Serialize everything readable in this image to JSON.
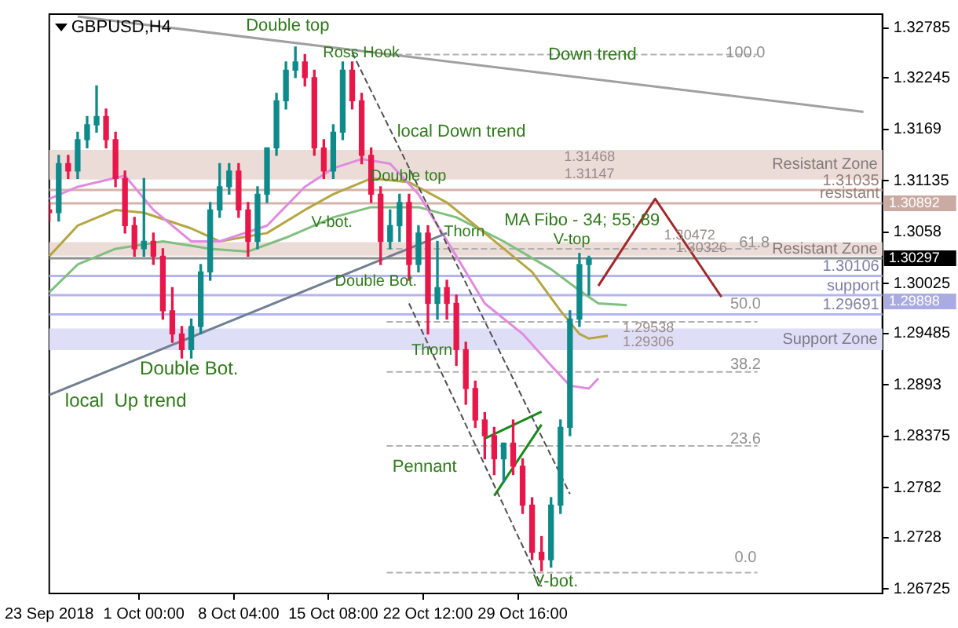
{
  "chart_data": {
    "type": "candlestick",
    "title": "GBPUSD,H4",
    "categories": [
      "23 Sep 2018",
      null,
      null,
      null,
      null,
      null,
      null,
      null,
      null,
      null,
      "1 Oct 00:00",
      null,
      null,
      null,
      null,
      null,
      null,
      null,
      null,
      null,
      "8 Oct 04:00",
      null,
      null,
      null,
      null,
      null,
      null,
      null,
      null,
      null,
      "15 Oct 08:00",
      null,
      null,
      null,
      null,
      null,
      null,
      null,
      null,
      null,
      "22 Oct 12:00",
      null,
      null,
      null,
      null,
      null,
      null,
      null,
      null,
      null,
      "29 Oct 16:00",
      null,
      null,
      null,
      null,
      null,
      null,
      null,
      null,
      null,
      null,
      null,
      null,
      null,
      null,
      null,
      null,
      null,
      null,
      null,
      null,
      null,
      null,
      null,
      null,
      null,
      null,
      null,
      null,
      null,
      null,
      null,
      null,
      null,
      null,
      null,
      null,
      null,
      null
    ],
    "ohlc": [
      [
        1.3082,
        1.309,
        1.307,
        1.3079
      ],
      [
        1.3079,
        1.3141,
        1.307,
        1.3132
      ],
      [
        1.3132,
        1.3141,
        1.3116,
        1.3124
      ],
      [
        1.3124,
        1.3166,
        1.3116,
        1.3158
      ],
      [
        1.3158,
        1.3183,
        1.3149,
        1.3174
      ],
      [
        1.3174,
        1.3216,
        1.3166,
        1.3183
      ],
      [
        1.3183,
        1.3191,
        1.3149,
        1.3158
      ],
      [
        1.3158,
        1.3166,
        1.3107,
        1.3116
      ],
      [
        1.3116,
        1.3124,
        1.3057,
        1.3065
      ],
      [
        1.3065,
        1.3074,
        1.3032,
        1.304
      ],
      [
        1.304,
        1.3116,
        1.3032,
        1.3048
      ],
      [
        1.3048,
        1.3057,
        1.3023,
        1.3032
      ],
      [
        1.3032,
        1.304,
        1.2964,
        1.2973
      ],
      [
        1.2973,
        1.2998,
        1.2939,
        1.2948
      ],
      [
        1.2948,
        1.2956,
        1.2922,
        1.2931
      ],
      [
        1.2931,
        1.2964,
        1.2922,
        1.2956
      ],
      [
        1.2956,
        1.3023,
        1.2948,
        1.3015
      ],
      [
        1.3015,
        1.309,
        1.3006,
        1.3082
      ],
      [
        1.3082,
        1.3132,
        1.3074,
        1.3107
      ],
      [
        1.3107,
        1.3132,
        1.3099,
        1.3124
      ],
      [
        1.3124,
        1.3132,
        1.3074,
        1.3082
      ],
      [
        1.3082,
        1.309,
        1.3032,
        1.3048
      ],
      [
        1.3048,
        1.3107,
        1.304,
        1.3099
      ],
      [
        1.3099,
        1.3149,
        1.309,
        1.3149
      ],
      [
        1.3149,
        1.3208,
        1.3141,
        1.32
      ],
      [
        1.32,
        1.3242,
        1.3191,
        1.3233
      ],
      [
        1.3233,
        1.3258,
        1.3225,
        1.3242
      ],
      [
        1.3242,
        1.325,
        1.3216,
        1.3225
      ],
      [
        1.3225,
        1.3233,
        1.3141,
        1.3149
      ],
      [
        1.3149,
        1.3158,
        1.3116,
        1.3124
      ],
      [
        1.3124,
        1.3174,
        1.3116,
        1.3166
      ],
      [
        1.3166,
        1.3242,
        1.3158,
        1.3233
      ],
      [
        1.3233,
        1.3242,
        1.3191,
        1.32
      ],
      [
        1.32,
        1.3208,
        1.3132,
        1.3141
      ],
      [
        1.3141,
        1.3149,
        1.309,
        1.3099
      ],
      [
        1.3099,
        1.3107,
        1.3023,
        1.3048
      ],
      [
        1.3048,
        1.3082,
        1.304,
        1.3065
      ],
      [
        1.3065,
        1.3099,
        1.3048,
        1.309
      ],
      [
        1.309,
        1.3099,
        1.3006,
        1.3023
      ],
      [
        1.3023,
        1.3065,
        1.3015,
        1.3057
      ],
      [
        1.3057,
        1.3065,
        1.2948,
        1.2981
      ],
      [
        1.2981,
        1.3048,
        1.2964,
        1.2998
      ],
      [
        1.2998,
        1.3006,
        1.2964,
        1.2981
      ],
      [
        1.2981,
        1.299,
        1.2914,
        1.2931
      ],
      [
        1.2931,
        1.2939,
        1.2872,
        1.2889
      ],
      [
        1.2889,
        1.2897,
        1.2847,
        1.2855
      ],
      [
        1.2855,
        1.2863,
        1.2813,
        1.2838
      ],
      [
        1.2838,
        1.2847,
        1.2796,
        1.2813
      ],
      [
        1.2813,
        1.283,
        1.2788,
        1.283
      ],
      [
        1.283,
        1.2855,
        1.2796,
        1.2805
      ],
      [
        1.2805,
        1.2813,
        1.2754,
        1.2763
      ],
      [
        1.2763,
        1.2771,
        1.2704,
        1.2712
      ],
      [
        1.2712,
        1.2729,
        1.2692,
        1.2704
      ],
      [
        1.2704,
        1.2771,
        1.2696,
        1.2763
      ],
      [
        1.2763,
        1.2855,
        1.2754,
        1.2847
      ],
      [
        1.2847,
        1.2973,
        1.2838,
        1.2964
      ],
      [
        1.2964,
        1.3035,
        1.2956,
        1.3023
      ],
      [
        1.3023,
        1.3032,
        1.299,
        1.303
      ],
      null,
      null,
      null,
      null,
      null,
      null,
      null,
      null,
      null,
      null,
      null,
      null,
      null,
      null,
      null,
      null,
      null,
      null,
      null,
      null,
      null,
      null,
      null,
      null,
      null,
      null,
      null,
      null,
      null,
      null,
      null
    ],
    "colors": [
      "#e8174a",
      "#0f8a8a",
      "#e8174a",
      "#0f8a8a",
      "#0f8a8a",
      "#0f8a8a",
      "#e8174a",
      "#e8174a",
      "#e8174a",
      "#e8174a",
      "#0f8a8a",
      "#e8174a",
      "#e8174a",
      "#e8174a",
      "#e8174a",
      "#0f8a8a",
      "#0f8a8a",
      "#0f8a8a",
      "#0f8a8a",
      "#0f8a8a",
      "#e8174a",
      "#e8174a",
      "#0f8a8a",
      "#0f8a8a",
      "#0f8a8a",
      "#0f8a8a",
      "#0f8a8a",
      "#e8174a",
      "#e8174a",
      "#e8174a",
      "#0f8a8a",
      "#0f8a8a",
      "#e8174a",
      "#e8174a",
      "#e8174a",
      "#e8174a",
      "#0f8a8a",
      "#0f8a8a",
      "#e8174a",
      "#0f8a8a",
      "#e8174a",
      "#0f8a8a",
      "#e8174a",
      "#e8174a",
      "#e8174a",
      "#e8174a",
      "#e8174a",
      "#e8174a",
      "#0f8a8a",
      "#e8174a",
      "#e8174a",
      "#e8174a",
      "#e8174a",
      "#0f8a8a",
      "#0f8a8a",
      "#0f8a8a",
      "#0f8a8a",
      "#0f8a8a",
      null,
      null,
      null,
      null,
      null,
      null,
      null,
      null,
      null,
      null,
      null,
      null,
      null,
      null,
      null,
      null,
      null,
      null,
      null,
      null,
      null,
      null,
      null,
      null,
      null,
      null,
      null,
      null,
      null,
      null,
      null
    ],
    "series": [
      {
        "type": "line",
        "color": "#a0a0a0",
        "line_style": "solid",
        "values": [
          null,
          null,
          null,
          1.3291,
          null,
          null,
          null,
          null,
          null,
          null,
          null,
          null,
          null,
          null,
          null,
          null,
          null,
          null,
          null,
          null,
          null,
          null,
          null,
          null,
          null,
          null,
          null,
          null,
          null,
          null,
          null,
          null,
          null,
          null,
          null,
          null,
          null,
          null,
          null,
          null,
          null,
          null,
          null,
          null,
          null,
          null,
          null,
          null,
          null,
          null,
          null,
          null,
          null,
          null,
          null,
          null,
          null,
          null,
          null,
          null,
          null,
          null,
          null,
          null,
          null,
          null,
          null,
          null,
          null,
          null,
          null,
          null,
          null,
          null,
          null,
          null,
          null,
          null,
          null,
          null,
          null,
          null,
          null,
          null,
          null,
          null,
          1.3188,
          null,
          null
        ]
      },
      {
        "type": "line",
        "color": "#708090",
        "line_style": "solid",
        "values": [
          1.2882,
          null,
          null,
          null,
          null,
          null,
          null,
          null,
          null,
          null,
          null,
          null,
          null,
          null,
          null,
          null,
          null,
          null,
          null,
          null,
          null,
          null,
          null,
          null,
          null,
          null,
          null,
          null,
          null,
          null,
          null,
          null,
          null,
          null,
          null,
          null,
          null,
          null,
          null,
          null,
          null,
          null,
          1.3057,
          null,
          null,
          null,
          null,
          null,
          null,
          null,
          null,
          null,
          null,
          null,
          null,
          null,
          null,
          null,
          null,
          null,
          null,
          null,
          null,
          null,
          null,
          null,
          null,
          null,
          null,
          null,
          null,
          null,
          null,
          null,
          null,
          null,
          null,
          null,
          null,
          null,
          null,
          null,
          null,
          null,
          null,
          null,
          null,
          null,
          null
        ]
      },
      {
        "type": "line",
        "color": "#505050",
        "line_style": "dashed",
        "values": [
          null,
          null,
          null,
          null,
          null,
          null,
          null,
          null,
          null,
          null,
          null,
          null,
          null,
          null,
          null,
          null,
          null,
          null,
          null,
          null,
          null,
          null,
          null,
          null,
          null,
          null,
          null,
          null,
          null,
          null,
          null,
          null,
          1.3252,
          null,
          null,
          null,
          null,
          null,
          null,
          null,
          null,
          null,
          null,
          null,
          null,
          null,
          null,
          null,
          null,
          null,
          null,
          null,
          null,
          null,
          null,
          1.2775,
          null,
          null,
          null,
          null,
          null,
          null,
          null,
          null,
          null,
          null,
          null,
          null,
          null,
          null,
          null,
          null,
          null,
          null,
          null,
          null,
          null,
          null,
          null,
          null,
          null,
          null,
          null,
          null,
          null,
          null,
          null,
          null,
          null
        ]
      },
      {
        "type": "line",
        "color": "#505050",
        "line_style": "dashed",
        "values": [
          null,
          null,
          null,
          null,
          null,
          null,
          null,
          null,
          null,
          null,
          null,
          null,
          null,
          null,
          null,
          null,
          null,
          null,
          null,
          null,
          null,
          null,
          null,
          null,
          null,
          null,
          null,
          null,
          null,
          null,
          null,
          null,
          null,
          null,
          null,
          null,
          null,
          null,
          1.2981,
          null,
          null,
          null,
          null,
          null,
          null,
          null,
          null,
          null,
          null,
          null,
          null,
          null,
          1.2675,
          null,
          null,
          null,
          null,
          null,
          null,
          null,
          null,
          null,
          null,
          null,
          null,
          null,
          null,
          null,
          null,
          null,
          null,
          null,
          null,
          null,
          null,
          null,
          null,
          null,
          null,
          null,
          null,
          null,
          null,
          null,
          null,
          null,
          null,
          null,
          null
        ]
      },
      {
        "type": "line",
        "color": "#1a8a1a",
        "line_style": "solid",
        "values": [
          null,
          null,
          null,
          null,
          null,
          null,
          null,
          null,
          null,
          null,
          null,
          null,
          null,
          null,
          null,
          null,
          null,
          null,
          null,
          null,
          null,
          null,
          null,
          null,
          null,
          null,
          null,
          null,
          null,
          null,
          null,
          null,
          null,
          null,
          null,
          null,
          null,
          null,
          null,
          null,
          null,
          null,
          null,
          null,
          null,
          null,
          1.2835,
          null,
          null,
          null,
          null,
          null,
          1.2864,
          null,
          null,
          null,
          null,
          null,
          null,
          null,
          null,
          null,
          null,
          null,
          null,
          null,
          null,
          null,
          null,
          null,
          null,
          null,
          null,
          null,
          null,
          null,
          null,
          null,
          null,
          null,
          null,
          null,
          null,
          null,
          null,
          null,
          null,
          null,
          null
        ]
      },
      {
        "type": "line",
        "color": "#1a8a1a",
        "line_style": "solid",
        "values": [
          null,
          null,
          null,
          null,
          null,
          null,
          null,
          null,
          null,
          null,
          null,
          null,
          null,
          null,
          null,
          null,
          null,
          null,
          null,
          null,
          null,
          null,
          null,
          null,
          null,
          null,
          null,
          null,
          null,
          null,
          null,
          null,
          null,
          null,
          null,
          null,
          null,
          null,
          null,
          null,
          null,
          null,
          null,
          null,
          null,
          null,
          null,
          1.2773,
          null,
          null,
          null,
          null,
          1.285,
          null,
          null,
          null,
          null,
          null,
          null,
          null,
          null,
          null,
          null,
          null,
          null,
          null,
          null,
          null,
          null,
          null,
          null,
          null,
          null,
          null,
          null,
          null,
          null,
          null,
          null,
          null,
          null,
          null,
          null,
          null,
          null,
          null,
          null,
          null,
          null
        ]
      },
      {
        "type": "line",
        "color": "#a02828",
        "line_style": "solid",
        "values": [
          null,
          null,
          null,
          null,
          null,
          null,
          null,
          null,
          null,
          null,
          null,
          null,
          null,
          null,
          null,
          null,
          null,
          null,
          null,
          null,
          null,
          null,
          null,
          null,
          null,
          null,
          null,
          null,
          null,
          null,
          null,
          null,
          null,
          null,
          null,
          null,
          null,
          null,
          null,
          null,
          null,
          null,
          null,
          null,
          null,
          null,
          null,
          null,
          null,
          null,
          null,
          null,
          null,
          null,
          null,
          null,
          null,
          null,
          1.3,
          null,
          null,
          null,
          null,
          null,
          1.3094,
          null,
          null,
          null,
          null,
          null,
          null,
          1.2988,
          null,
          null,
          null,
          null,
          null,
          null,
          null,
          null,
          null,
          null,
          null,
          null,
          null,
          null,
          null,
          null,
          null
        ]
      },
      {
        "type": "line",
        "color": "#e08be0",
        "line_style": "solid",
        "values": [
          1.3094,
          null,
          null,
          1.3107,
          null,
          null,
          null,
          null,
          1.3119,
          null,
          null,
          1.3082,
          null,
          null,
          null,
          1.3048,
          null,
          null,
          1.3048,
          null,
          null,
          null,
          null,
          1.3065,
          null,
          null,
          null,
          1.3107,
          null,
          null,
          1.3127,
          null,
          null,
          1.3137,
          null,
          null,
          1.3132,
          null,
          null,
          1.3099,
          null,
          null,
          null,
          1.3032,
          null,
          null,
          1.2981,
          null,
          null,
          null,
          1.2948,
          null,
          null,
          1.2914,
          null,
          1.2892,
          null,
          1.2889,
          1.29,
          null,
          null,
          null,
          null,
          null,
          null,
          null,
          null,
          null,
          null,
          null,
          null,
          null,
          null,
          null,
          null,
          null,
          null,
          null,
          null,
          null,
          null,
          null,
          null,
          null,
          null,
          null,
          null,
          null,
          null
        ]
      },
      {
        "type": "line",
        "color": "#b5a642",
        "line_style": "solid",
        "values": [
          1.3032,
          null,
          null,
          1.3065,
          null,
          null,
          null,
          1.3082,
          null,
          null,
          1.3079,
          null,
          null,
          null,
          null,
          1.3062,
          null,
          null,
          1.3048,
          null,
          null,
          null,
          null,
          1.3057,
          null,
          null,
          null,
          1.3082,
          null,
          null,
          1.3099,
          null,
          null,
          null,
          1.3116,
          null,
          null,
          null,
          1.3112,
          null,
          null,
          null,
          1.309,
          null,
          null,
          null,
          1.3057,
          null,
          null,
          null,
          null,
          1.3015,
          null,
          null,
          1.2973,
          null,
          1.2948,
          1.2943,
          null,
          1.2946,
          null,
          null,
          null,
          null,
          null,
          null,
          null,
          null,
          null,
          null,
          null,
          null,
          null,
          null,
          null,
          null,
          null,
          null,
          null,
          null,
          null,
          null,
          null,
          null,
          null,
          null,
          null,
          null,
          null
        ]
      },
      {
        "type": "line",
        "color": "#7fbf7f",
        "line_style": "solid",
        "values": [
          1.2993,
          null,
          null,
          1.3023,
          null,
          null,
          null,
          1.304,
          null,
          null,
          null,
          null,
          1.3048,
          null,
          null,
          null,
          null,
          1.304,
          null,
          null,
          null,
          1.3037,
          null,
          null,
          null,
          1.3052,
          null,
          null,
          null,
          null,
          1.3074,
          null,
          null,
          null,
          1.3085,
          null,
          null,
          null,
          null,
          1.3085,
          null,
          null,
          null,
          1.3074,
          null,
          null,
          null,
          null,
          1.3048,
          null,
          null,
          null,
          null,
          1.3018,
          null,
          null,
          1.2995,
          null,
          1.2981,
          null,
          null,
          1.2979,
          null,
          null,
          null,
          null,
          null,
          null,
          null,
          null,
          null,
          null,
          null,
          null,
          null,
          null,
          null,
          null,
          null,
          null,
          null,
          null,
          null,
          null,
          null,
          null,
          null,
          null,
          null
        ]
      }
    ],
    "bands": [
      {
        "axis": "y",
        "from": 1.31147,
        "to": 1.31468,
        "label": "Resistant Zone",
        "color": "#ecdcd8"
      },
      {
        "axis": "y",
        "from": 1.30326,
        "to": 1.30472,
        "label": "Resistant Zone",
        "color": "#ecdcd8"
      },
      {
        "axis": "y",
        "from": 1.29306,
        "to": 1.29538,
        "label": "Support Zone",
        "color": "#dedef6"
      }
    ],
    "ref_lines": [
      {
        "axis": "y",
        "value": 1.31035,
        "label": "1.31035",
        "color": "#d4b4ac"
      },
      {
        "axis": "y",
        "value": 1.30892,
        "label": "resistant",
        "color": "#d4b4ac"
      },
      {
        "axis": "y",
        "value": 1.30297,
        "color": "#909090"
      },
      {
        "axis": "y",
        "value": 1.30106,
        "label": "1.30106",
        "color": "#b4b4f0"
      },
      {
        "axis": "y",
        "value": 1.29898,
        "label": "support",
        "color": "#b4b4f0"
      },
      {
        "axis": "y",
        "value": 1.29691,
        "label": "1.29691",
        "color": "#b4b4f0"
      },
      {
        "axis": "y",
        "value": 1.325,
        "color": "#b0b0b0",
        "line_style": "dashed"
      },
      {
        "axis": "y",
        "value": 1.304,
        "color": "#b0b0b0",
        "line_style": "dashed"
      },
      {
        "axis": "y",
        "value": 1.2961,
        "color": "#b0b0b0",
        "line_style": "dashed"
      },
      {
        "axis": "y",
        "value": 1.2907,
        "color": "#b0b0b0",
        "line_style": "dashed"
      },
      {
        "axis": "y",
        "value": 1.2827,
        "color": "#b0b0b0",
        "line_style": "dashed"
      },
      {
        "axis": "y",
        "value": 1.269,
        "color": "#b0b0b0",
        "line_style": "dashed"
      }
    ],
    "annotations": [
      "Double top",
      "Ross Hook",
      "Down trend",
      "local Down trend",
      "Double top",
      "V-bot.",
      "MA Fibo - 34; 55; 89",
      "Thorn",
      "V-top",
      "Double Bot.",
      "Thorn",
      "Double Bot.",
      "local  Up trend",
      "Pennant",
      "V-bot.",
      "1.31468",
      "1.31147",
      "1.30472",
      "1.30326",
      "1.29538",
      "1.29306",
      "1.30892",
      "1.30297",
      "1.29898",
      "100.0",
      "61.8",
      "50.0",
      "38.2",
      "23.6",
      "0.0"
    ],
    "marker": "none",
    "legend": false,
    "ylim": [
      1.26675,
      1.32936
    ],
    "yticks": [
      1.32785,
      1.32245,
      1.3169,
      1.31135,
      1.3058,
      1.30025,
      1.29485,
      1.2893,
      1.28375,
      1.2782,
      1.2728,
      1.26725
    ]
  }
}
